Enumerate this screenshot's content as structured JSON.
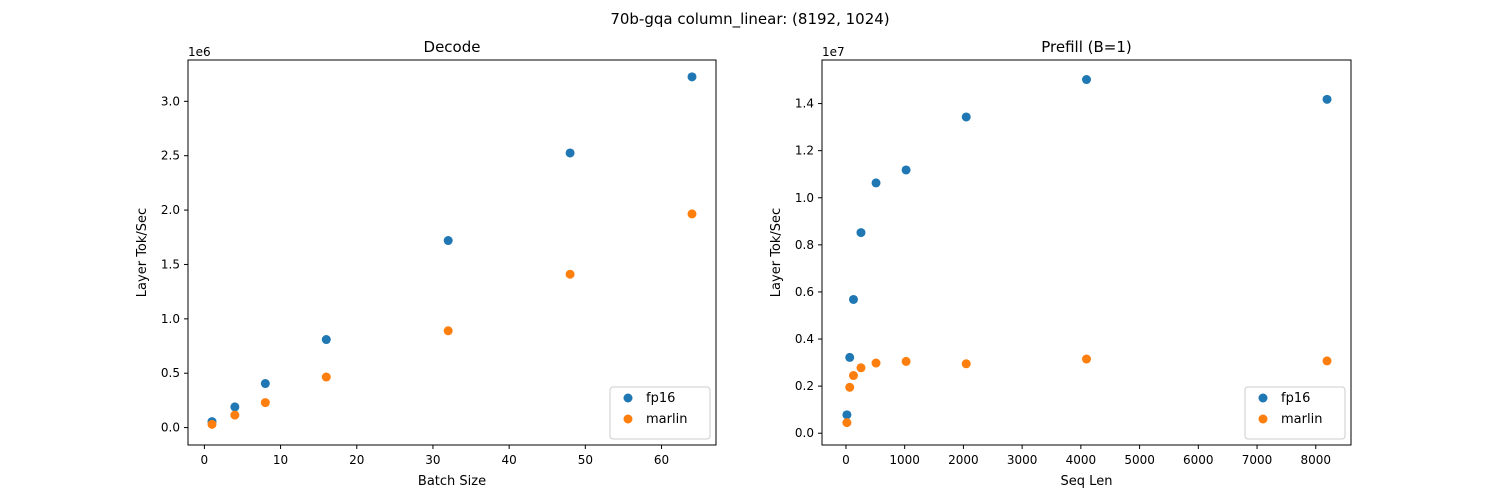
{
  "figure_title": "70b-gqa column_linear: (8192, 1024)",
  "colors": {
    "fp16": "#1f77b4",
    "marlin": "#ff7f0e"
  },
  "chart_data": [
    {
      "type": "scatter",
      "title": "Decode",
      "xlabel": "Batch Size",
      "ylabel": "Layer Tok/Sec",
      "y_offset_label": "1e6",
      "xlim": [
        -2.15,
        67.15
      ],
      "ylim": [
        -0.16,
        3.38
      ],
      "xticks": [
        0,
        10,
        20,
        30,
        40,
        50,
        60
      ],
      "xtick_labels": [
        "0",
        "10",
        "20",
        "30",
        "40",
        "50",
        "60"
      ],
      "yticks": [
        0,
        0.5,
        1.0,
        1.5,
        2.0,
        2.5,
        3.0
      ],
      "ytick_labels": [
        "0.0",
        "0.5",
        "1.0",
        "1.5",
        "2.0",
        "2.5",
        "3.0"
      ],
      "legend_position": "lower right",
      "grid": false,
      "series": [
        {
          "name": "fp16",
          "x": [
            1,
            4,
            8,
            16,
            32,
            48,
            64
          ],
          "y": [
            0.055,
            0.19,
            0.405,
            0.81,
            1.72,
            2.525,
            3.225
          ]
        },
        {
          "name": "marlin",
          "x": [
            1,
            4,
            8,
            16,
            32,
            48,
            64
          ],
          "y": [
            0.03,
            0.115,
            0.23,
            0.465,
            0.89,
            1.41,
            1.965
          ]
        }
      ]
    },
    {
      "type": "scatter",
      "title": "Prefill (B=1)",
      "xlabel": "Seq Len",
      "ylabel": "Layer Tok/Sec",
      "y_offset_label": "1e7",
      "xlim": [
        -408,
        8600
      ],
      "ylim": [
        -0.05,
        1.585
      ],
      "xticks": [
        0,
        1000,
        2000,
        3000,
        4000,
        5000,
        6000,
        7000,
        8000
      ],
      "xtick_labels": [
        "0",
        "1000",
        "2000",
        "3000",
        "4000",
        "5000",
        "6000",
        "7000",
        "8000"
      ],
      "yticks": [
        0,
        0.2,
        0.4,
        0.6,
        0.8,
        1.0,
        1.2,
        1.4
      ],
      "ytick_labels": [
        "0.0",
        "0.2",
        "0.4",
        "0.6",
        "0.8",
        "1.0",
        "1.2",
        "1.4"
      ],
      "legend_position": "lower right",
      "grid": false,
      "series": [
        {
          "name": "fp16",
          "x": [
            16,
            64,
            128,
            256,
            512,
            1024,
            2048,
            4096,
            8192
          ],
          "y": [
            0.078,
            0.322,
            0.568,
            0.852,
            1.063,
            1.118,
            1.343,
            1.502,
            1.418
          ]
        },
        {
          "name": "marlin",
          "x": [
            16,
            64,
            128,
            256,
            512,
            1024,
            2048,
            4096,
            8192
          ],
          "y": [
            0.045,
            0.195,
            0.245,
            0.278,
            0.298,
            0.305,
            0.295,
            0.315,
            0.307
          ]
        }
      ]
    }
  ]
}
